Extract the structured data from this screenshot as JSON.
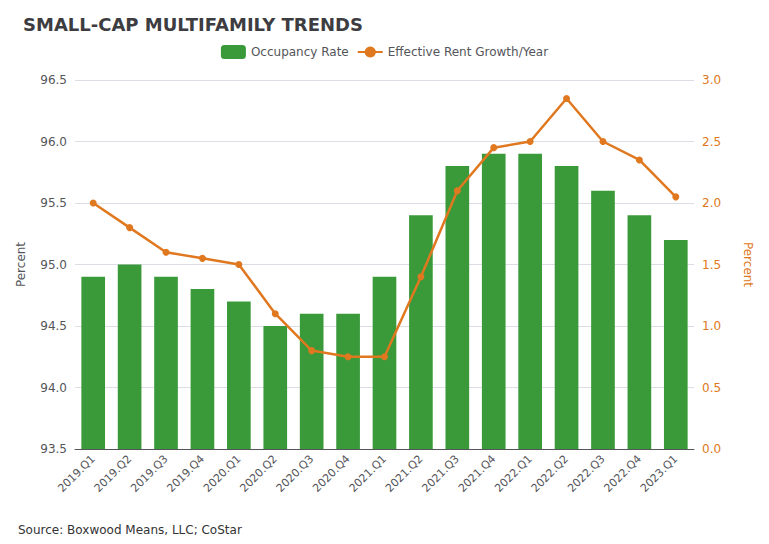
{
  "chart_data": {
    "type": "bar",
    "title": "SMALL-CAP MULTIFAMILY TRENDS",
    "annotations": [
      "Source: Boxwood Means, LLC; CoStar"
    ],
    "categories": [
      "2019.Q1",
      "2019.Q2",
      "2019.Q3",
      "2019.Q4",
      "2020.Q1",
      "2020.Q2",
      "2020.Q3",
      "2020.Q4",
      "2021.Q1",
      "2021.Q2",
      "2021.Q3",
      "2021.Q4",
      "2022.Q1",
      "2022.Q2",
      "2022.Q3",
      "2022.Q4",
      "2023.Q1"
    ],
    "series": [
      {
        "name": "Occupancy Rate",
        "type": "bar",
        "color": "#3a9a3a",
        "values": [
          94.9,
          95.0,
          94.9,
          94.8,
          94.7,
          94.5,
          94.6,
          94.6,
          94.9,
          95.4,
          95.8,
          95.9,
          95.9,
          95.8,
          95.6,
          95.4,
          95.2
        ]
      },
      {
        "name": "Effective Rent Growth/Year",
        "type": "line",
        "color": "#e07820",
        "marker": "circle",
        "axis": "y2",
        "values": [
          2.0,
          1.8,
          1.6,
          1.55,
          1.5,
          1.1,
          0.8,
          0.75,
          0.75,
          1.4,
          2.1,
          2.45,
          2.5,
          2.85,
          2.5,
          2.35,
          2.05
        ]
      }
    ],
    "ylabel": "Percent",
    "y2label": "Percent",
    "ylim": [
      93.5,
      96.5
    ],
    "yticks": [
      93.5,
      {
        "value": 94,
        "label": "94.0"
      },
      94.5,
      {
        "value": 95,
        "label": "95.0"
      },
      95.5,
      {
        "value": 96,
        "label": "96.0"
      },
      96.5
    ],
    "y2lim": [
      0,
      3
    ],
    "y2ticks": [
      {
        "value": 0,
        "label": "0.0"
      },
      0.5,
      {
        "value": 1,
        "label": "1.0"
      },
      1.5,
      {
        "value": 2,
        "label": "2.0"
      },
      2.5,
      {
        "value": 3,
        "label": "3.0"
      }
    ],
    "grid": true,
    "legend": "top"
  }
}
